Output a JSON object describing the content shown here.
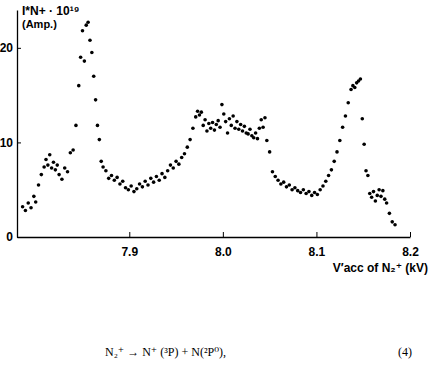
{
  "chart_data": {
    "type": "scatter",
    "y_label": "I*N+ · 10¹⁹",
    "x_label": "V′acc of N₂⁺ (kV)",
    "annotations": [
      "(Amp.)",
      "N₂⁺ → N⁺ (³P) + N(²P⁰),",
      "(4)"
    ],
    "marker": "circle",
    "color": "#000000",
    "grid": false,
    "xlim": [
      7.78,
      8.2
    ],
    "ylim": [
      0,
      24
    ],
    "xticks": [
      7.9,
      {
        "value": 8,
        "label": "8.0"
      },
      8.1,
      8.2
    ],
    "yticks": [
      0,
      10,
      20
    ],
    "x": [
      7.786,
      7.789,
      7.792,
      7.795,
      7.798,
      7.8,
      7.803,
      7.806,
      7.809,
      7.811,
      7.813,
      7.815,
      7.817,
      7.819,
      7.821,
      7.823,
      7.825,
      7.828,
      7.831,
      7.834,
      7.837,
      7.84,
      7.843,
      7.846,
      7.848,
      7.85,
      7.852,
      7.854,
      7.856,
      7.858,
      7.86,
      7.862,
      7.864,
      7.866,
      7.868,
      7.87,
      7.872,
      7.875,
      7.878,
      7.881,
      7.884,
      7.887,
      7.89,
      7.893,
      7.896,
      7.899,
      7.902,
      7.905,
      7.908,
      7.911,
      7.914,
      7.917,
      7.92,
      7.923,
      7.926,
      7.929,
      7.932,
      7.935,
      7.938,
      7.941,
      7.944,
      7.947,
      7.95,
      7.953,
      7.956,
      7.959,
      7.962,
      7.965,
      7.968,
      7.971,
      7.973,
      7.975,
      7.977,
      7.979,
      7.981,
      7.983,
      7.985,
      7.987,
      7.989,
      7.991,
      7.993,
      7.995,
      7.997,
      7.999,
      8.001,
      8.003,
      8.005,
      8.007,
      8.009,
      8.011,
      8.013,
      8.015,
      8.017,
      8.019,
      8.021,
      8.023,
      8.025,
      8.027,
      8.029,
      8.031,
      8.033,
      8.035,
      8.037,
      8.039,
      8.041,
      8.043,
      8.045,
      8.047,
      8.05,
      8.053,
      8.056,
      8.059,
      8.062,
      8.065,
      8.068,
      8.071,
      8.074,
      8.077,
      8.08,
      8.083,
      8.086,
      8.089,
      8.092,
      8.095,
      8.098,
      8.101,
      8.104,
      8.107,
      8.11,
      8.113,
      8.116,
      8.119,
      8.122,
      8.125,
      8.128,
      8.131,
      8.134,
      8.137,
      8.139,
      8.141,
      8.143,
      8.145,
      8.147,
      8.149,
      8.151,
      8.153,
      8.155,
      8.157,
      8.159,
      8.161,
      8.163,
      8.165,
      8.167,
      8.169,
      8.171,
      8.173,
      8.175,
      8.178,
      8.181,
      8.184
    ],
    "values": [
      3.2,
      2.8,
      3.6,
      3.1,
      4.3,
      3.7,
      5.5,
      6.6,
      7.4,
      8.2,
      7.6,
      8.7,
      7.3,
      7.9,
      7.1,
      7.6,
      6.6,
      6.1,
      7.3,
      6.9,
      8.9,
      9.2,
      11.8,
      16.0,
      19.0,
      21.8,
      18.6,
      22.4,
      22.7,
      20.8,
      19.5,
      17.0,
      14.5,
      11.8,
      10.3,
      8.0,
      7.4,
      7.0,
      6.2,
      6.5,
      6.0,
      6.3,
      5.6,
      5.9,
      5.2,
      5.0,
      5.4,
      4.8,
      5.1,
      5.6,
      5.3,
      5.9,
      5.5,
      6.2,
      5.8,
      6.4,
      6.0,
      6.7,
      6.3,
      7.0,
      7.6,
      7.3,
      8.0,
      7.7,
      8.4,
      8.8,
      9.5,
      10.3,
      11.5,
      12.7,
      13.3,
      12.9,
      13.2,
      11.8,
      12.4,
      11.2,
      12.0,
      11.5,
      12.1,
      11.3,
      11.9,
      12.3,
      11.6,
      14.0,
      13.0,
      12.2,
      11.0,
      12.5,
      11.8,
      12.8,
      11.5,
      12.2,
      11.4,
      11.9,
      11.2,
      11.7,
      11.0,
      10.9,
      11.4,
      10.7,
      10.5,
      11.0,
      10.4,
      11.5,
      12.4,
      11.6,
      12.6,
      10.2,
      9.0,
      6.9,
      6.4,
      6.0,
      5.6,
      5.8,
      5.3,
      5.5,
      5.0,
      5.2,
      4.9,
      4.7,
      5.0,
      4.6,
      4.8,
      4.4,
      4.7,
      4.5,
      5.0,
      5.4,
      5.9,
      6.5,
      7.1,
      8.0,
      9.0,
      10.2,
      11.6,
      12.8,
      14.2,
      15.6,
      16.0,
      15.8,
      16.3,
      16.5,
      16.7,
      12.5,
      9.8,
      7.0,
      6.5,
      4.6,
      4.2,
      4.8,
      3.8,
      4.4,
      5.0,
      4.3,
      4.9,
      4.0,
      3.6,
      2.5,
      1.6,
      1.3
    ]
  }
}
